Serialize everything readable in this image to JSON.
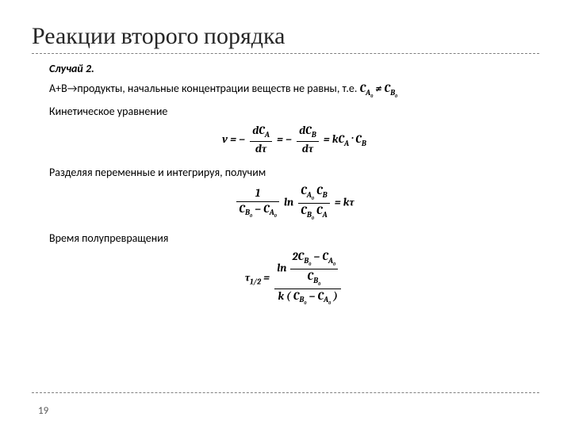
{
  "colors": {
    "background": "#ffffff",
    "title": "#262626",
    "text": "#000000",
    "dash": "#7f7f7f",
    "pagenum": "#595959"
  },
  "fonts": {
    "title_family": "Cambria, Georgia, serif",
    "body_family": "Calibri, 'Segoe UI', sans-serif",
    "math_family": "Cambria, 'Cambria Math', Georgia, serif",
    "title_size_pt": 30,
    "body_size_pt": 14,
    "math_size_pt": 14
  },
  "title": "Реакции второго порядка",
  "case_label": "Случай 2.",
  "line1_prefix": "А+В→продукты, начальные концентрации веществ  не равны, т.е. ",
  "line2": "Кинетическое уравнение",
  "line3": "Разделяя переменные и интегрируя, получим",
  "line4": "Время полупревращения",
  "page_number": "19",
  "math": {
    "eq_inline": {
      "lhs": "C",
      "lhs_sub": "A",
      "lhs_sub2": "0",
      "neq": " ≠ ",
      "rhs": "C",
      "rhs_sub": "B",
      "rhs_sub2": "0"
    },
    "eq1": {
      "v_eq_minus": "v = −",
      "dCA": "dC",
      "A": "A",
      "dtau": "dτ",
      "eq_minus2": " = −",
      "dCB": "dC",
      "B": "B",
      "eq_k": " = kC",
      "dot": " · C"
    },
    "eq2": {
      "one": "1",
      "CB0_minus_CA0_left": "C",
      "B0": "B",
      "zero": "0",
      "minus": " − ",
      "CA0": "C",
      "A0": "A",
      "ln": " ln",
      "eq_kt": " = kτ"
    },
    "eq3": {
      "tau_half": "τ",
      "half": "1/2",
      "eq": " = ",
      "two": "2",
      "ln": "ln",
      "k": "k",
      "lp": "(",
      "rp": ")"
    }
  }
}
